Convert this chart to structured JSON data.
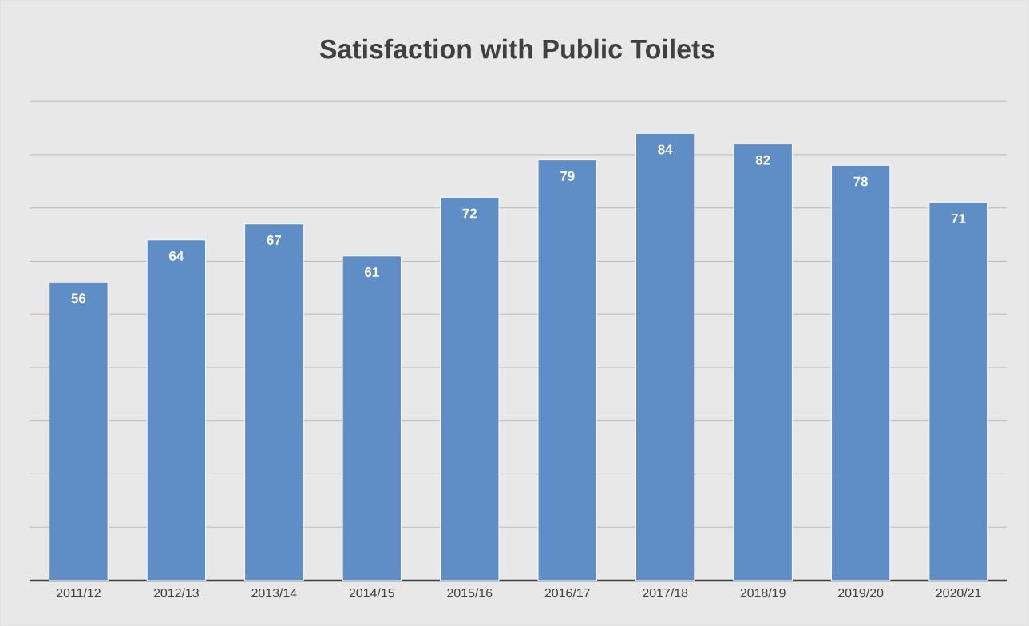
{
  "chart_data": {
    "type": "bar",
    "title": "Satisfaction with Public Toilets",
    "categories": [
      "2011/12",
      "2012/13",
      "2013/14",
      "2014/15",
      "2015/16",
      "2016/17",
      "2017/18",
      "2018/19",
      "2019/20",
      "2020/21"
    ],
    "values": [
      56,
      64,
      67,
      61,
      72,
      79,
      84,
      82,
      78,
      71
    ],
    "color": "#5f8ec6",
    "grid": "y",
    "data_labels": true,
    "tick_labels": "x"
  }
}
